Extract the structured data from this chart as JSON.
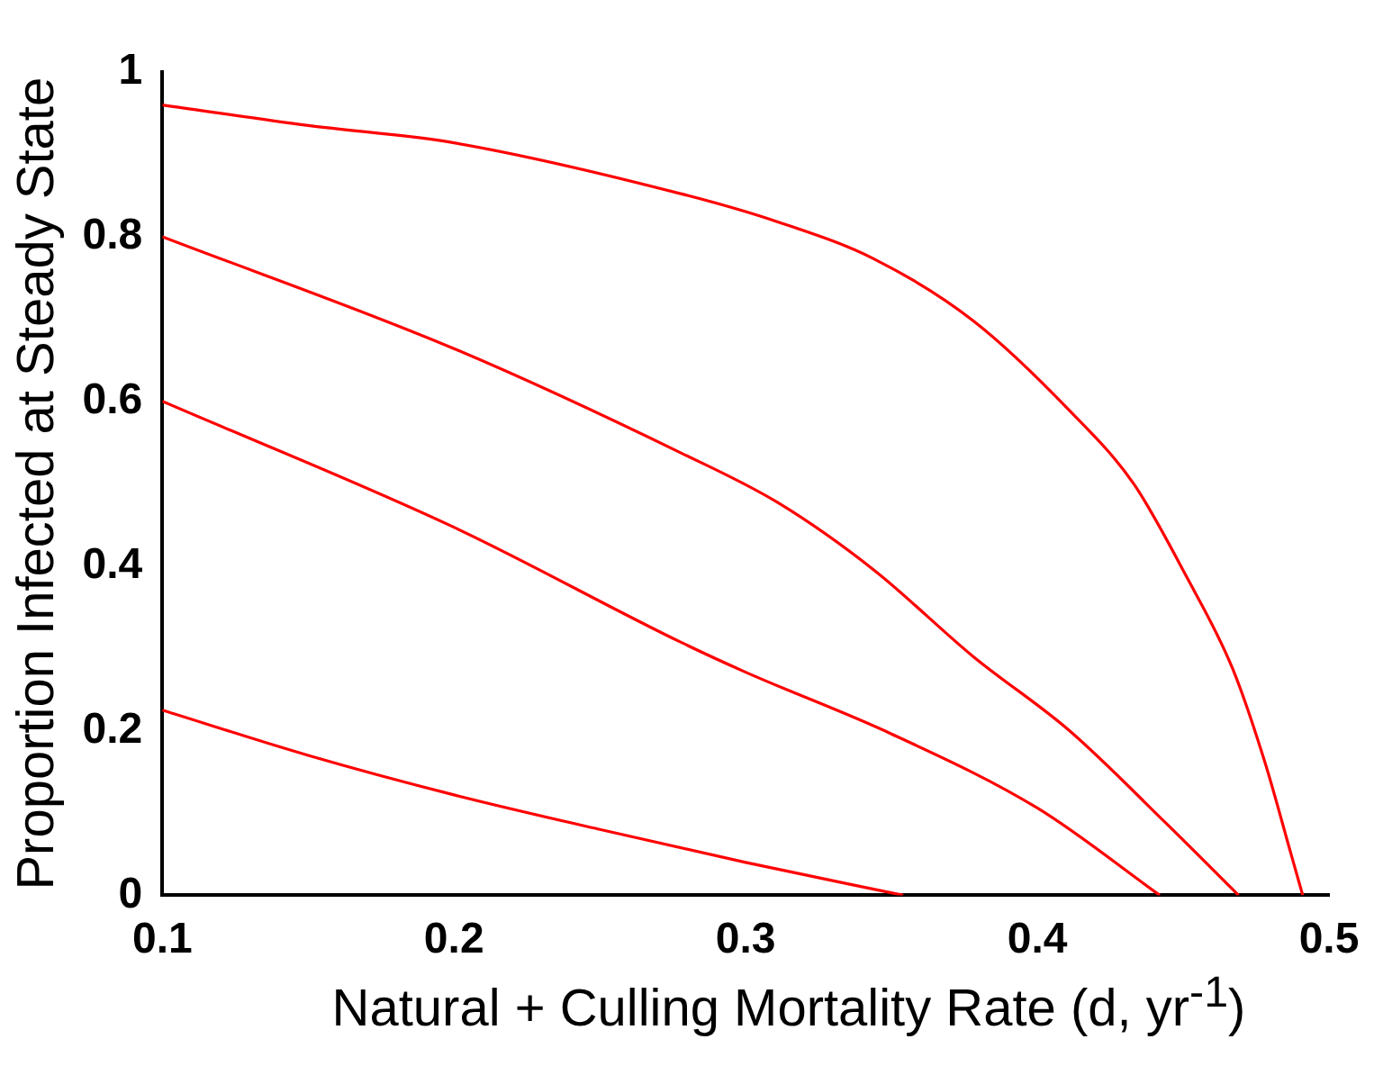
{
  "chart_data": {
    "type": "line",
    "xlabel": "Natural + Culling Mortality Rate (d, yr$^{-1}$)",
    "ylabel": "Proportion Infected at Steady State",
    "xlim": [
      0.1,
      0.5
    ],
    "xticks": [
      0.1,
      0.2,
      0.3,
      0.4,
      0.5
    ],
    "ylim": [
      0,
      1
    ],
    "yticks": [
      0,
      0.2,
      0.4,
      0.6,
      0.8,
      1
    ],
    "grid": false,
    "legend": false,
    "marker": "none",
    "line_style": "solid",
    "series": [
      {
        "color": "#ff0000",
        "x": [
          0.1,
          0.15,
          0.2,
          0.278,
          0.311,
          0.344,
          0.378,
          0.411,
          0.433,
          0.451,
          0.467,
          0.478,
          0.487,
          0.491
        ],
        "values": [
          0.96,
          0.935,
          0.914,
          0.852,
          0.818,
          0.773,
          0.698,
          0.589,
          0.5,
          0.388,
          0.275,
          0.162,
          0.05,
          0
        ]
      },
      {
        "color": "#ff0000",
        "x": [
          0.1,
          0.2,
          0.278,
          0.311,
          0.344,
          0.378,
          0.411,
          0.444,
          0.469
        ],
        "values": [
          0.8,
          0.664,
          0.537,
          0.477,
          0.395,
          0.29,
          0.2,
          0.088,
          0
        ]
      },
      {
        "color": "#ff0000",
        "x": [
          0.1,
          0.2,
          0.278,
          0.3,
          0.35,
          0.4,
          0.442
        ],
        "values": [
          0.6,
          0.447,
          0.307,
          0.271,
          0.196,
          0.106,
          0
        ]
      },
      {
        "color": "#ff0000",
        "x": [
          0.1,
          0.15,
          0.2,
          0.25,
          0.3,
          0.354
        ],
        "values": [
          0.225,
          0.17,
          0.122,
          0.08,
          0.04,
          0
        ]
      }
    ]
  }
}
